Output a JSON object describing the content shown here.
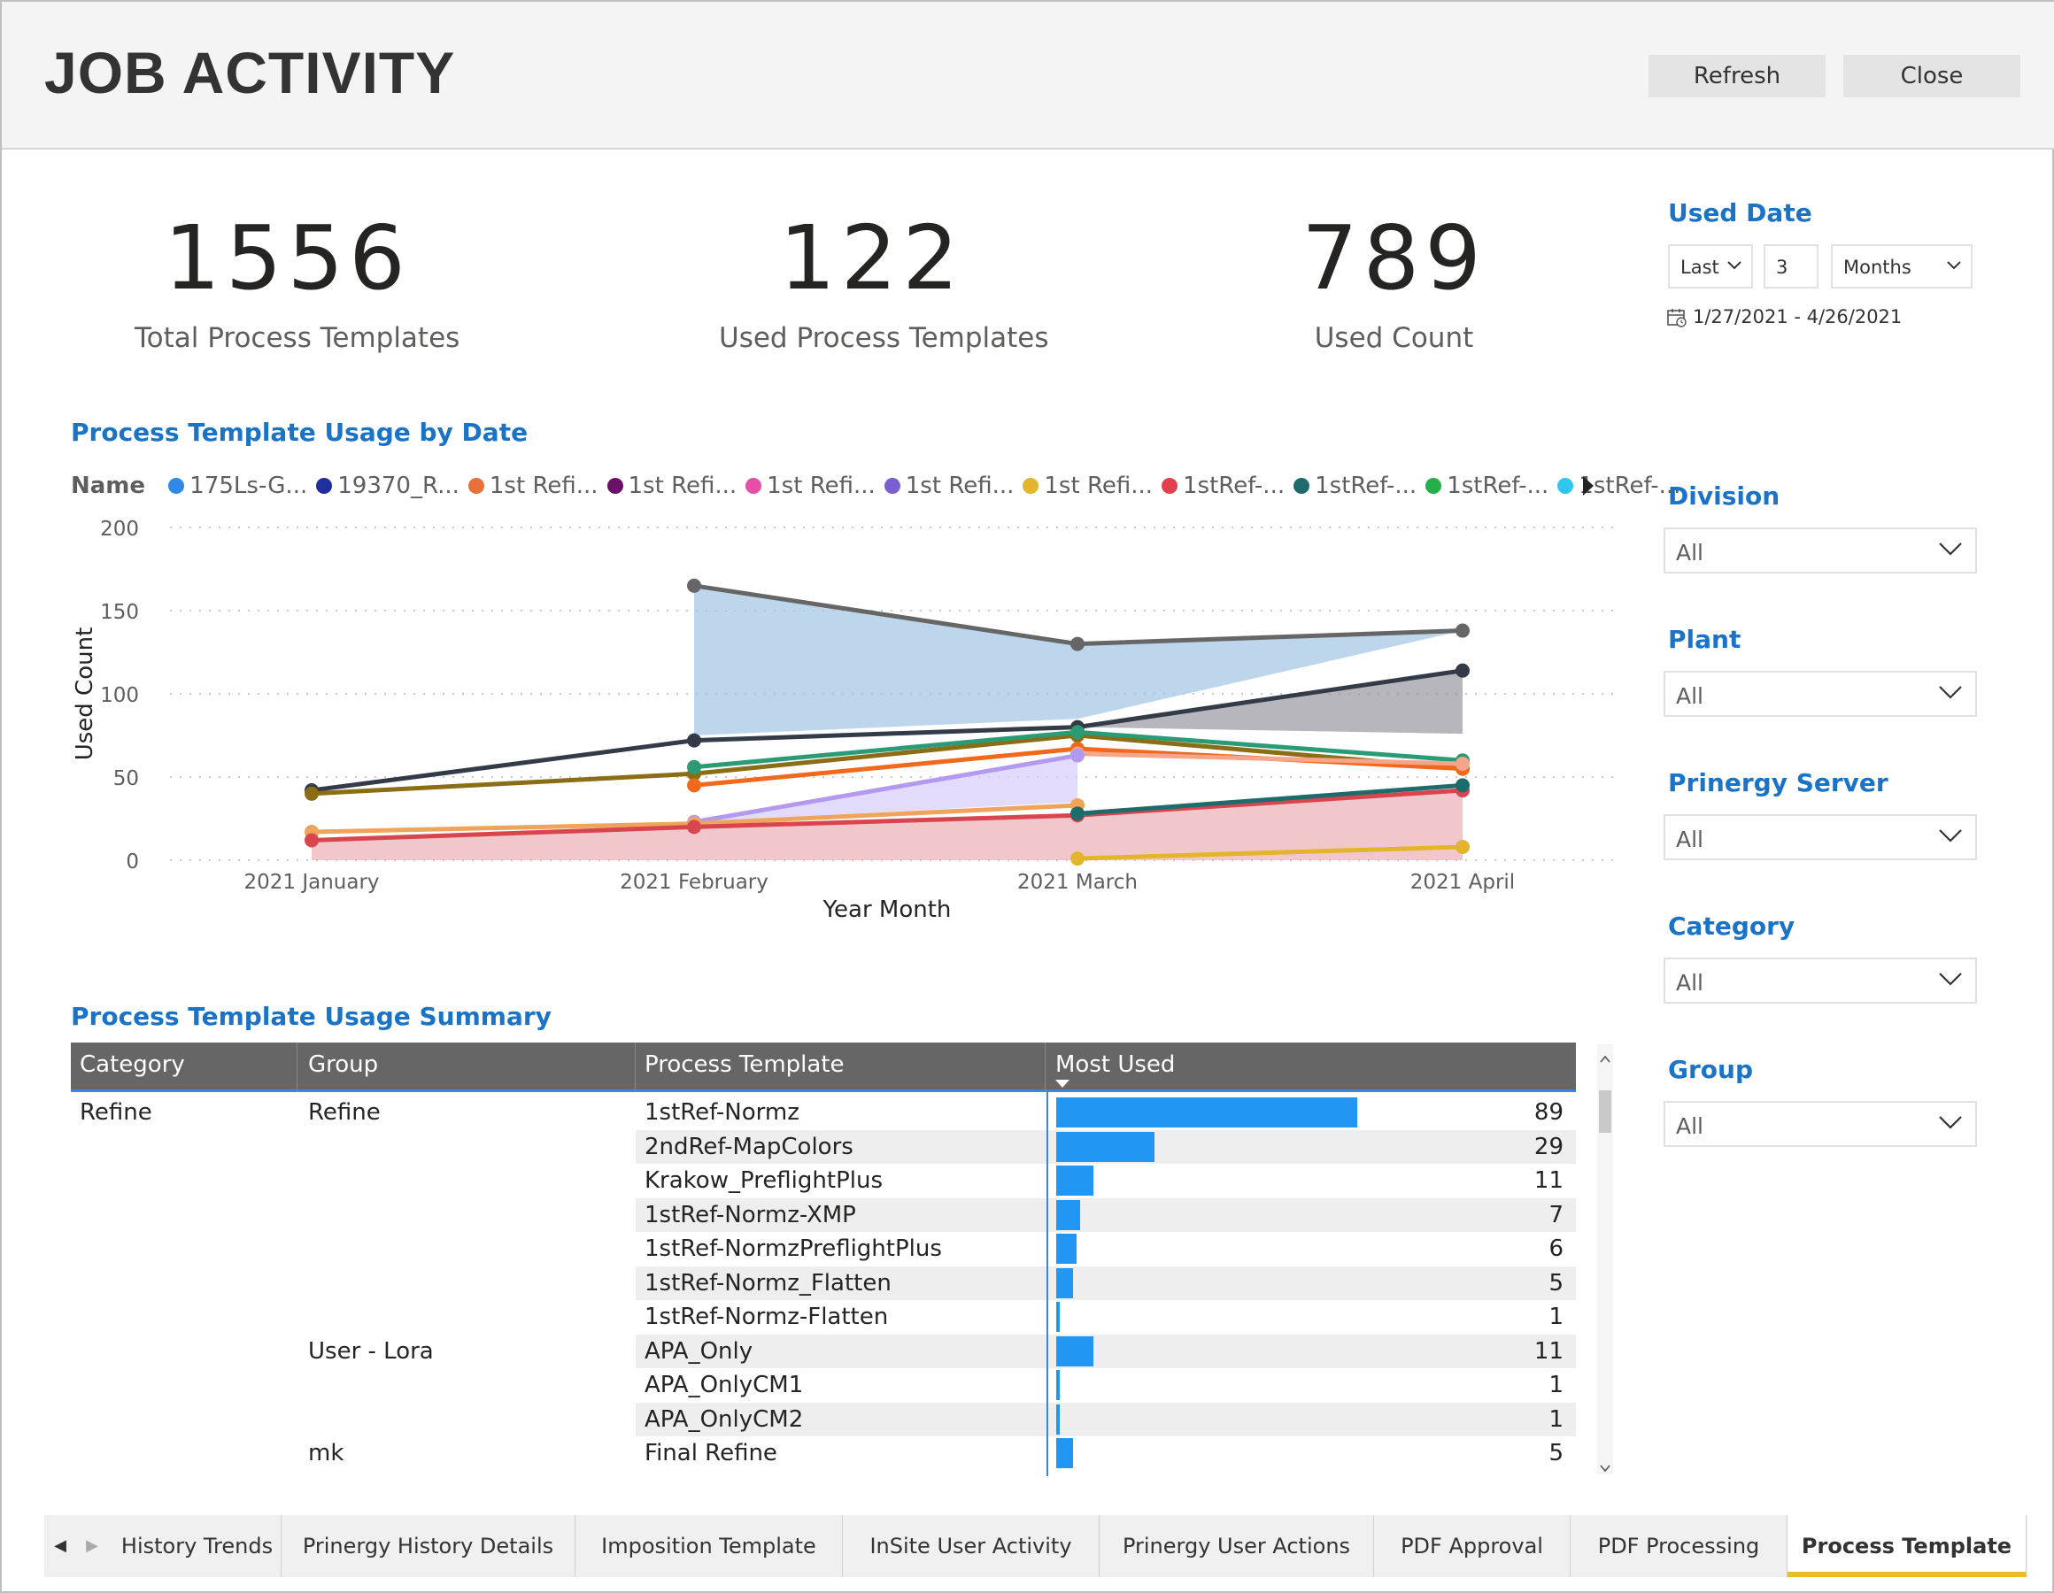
{
  "header": {
    "title": "JOB ACTIVITY",
    "refresh_label": "Refresh",
    "close_label": "Close"
  },
  "kpis": [
    {
      "value": "1556",
      "label": "Total Process Templates"
    },
    {
      "value": "122",
      "label": "Used Process Templates"
    },
    {
      "value": "789",
      "label": "Used Count"
    }
  ],
  "filters": {
    "used_date": {
      "title": "Used Date",
      "relative": "Last",
      "amount": "3",
      "unit": "Months",
      "range": "1/27/2021 - 4/26/2021"
    },
    "slicers": [
      {
        "title": "Division",
        "value": "All"
      },
      {
        "title": "Plant",
        "value": "All"
      },
      {
        "title": "Prinergy Server",
        "value": "All"
      },
      {
        "title": "Category",
        "value": "All"
      },
      {
        "title": "Group",
        "value": "All"
      }
    ]
  },
  "chart_title": "Process Template Usage by Date",
  "legend": {
    "label": "Name",
    "items": [
      {
        "name": "175Ls-G...",
        "color": "#2e8ae6"
      },
      {
        "name": "19370_R...",
        "color": "#1f2f9e"
      },
      {
        "name": "1st Refi...",
        "color": "#e8703a"
      },
      {
        "name": "1st Refi...",
        "color": "#6b0f6b"
      },
      {
        "name": "1st Refi...",
        "color": "#e44fa8"
      },
      {
        "name": "1st Refi...",
        "color": "#7b5fd1"
      },
      {
        "name": "1st Refi...",
        "color": "#e3b52a"
      },
      {
        "name": "1stRef-...",
        "color": "#e3404d"
      },
      {
        "name": "1stRef-...",
        "color": "#1d6b6b"
      },
      {
        "name": "1stRef-...",
        "color": "#23b04a"
      },
      {
        "name": "1stRef-...",
        "color": "#31c6ef"
      }
    ]
  },
  "chart_data": {
    "type": "area",
    "categories": [
      "2021 January",
      "2021 February",
      "2021 March",
      "2021 April"
    ],
    "xlabel": "Year Month",
    "ylabel": "Used Count",
    "ylim": [
      0,
      200
    ],
    "yticks": [
      0,
      50,
      100,
      150,
      200
    ],
    "grid": true,
    "legend_position": "top-left",
    "series": [
      {
        "color": "#a8c8e6",
        "line": "#666666",
        "values": [
          null,
          165,
          130,
          138
        ],
        "base": [
          null,
          75,
          85,
          138
        ],
        "fill": true
      },
      {
        "color": "#9e9ea6",
        "line": "#333a48",
        "values": [
          42,
          72,
          80,
          114
        ],
        "base": [
          null,
          null,
          80,
          76
        ],
        "fill": true
      },
      {
        "color": "#8a6d14",
        "line": "#8a6d14",
        "values": [
          40,
          52,
          75,
          55
        ]
      },
      {
        "color": "#2a9b74",
        "line": "#2a9b74",
        "values": [
          null,
          56,
          77,
          60
        ]
      },
      {
        "color": "#f2691e",
        "line": "#f2691e",
        "values": [
          null,
          45,
          67,
          55
        ]
      },
      {
        "color": "#f4a58a",
        "line": "#f4a58a",
        "values": [
          null,
          null,
          64,
          58
        ]
      },
      {
        "color": "#d9cffa",
        "line": "#b39af0",
        "values": [
          null,
          23,
          63,
          null
        ],
        "base": [
          null,
          23,
          35,
          null
        ],
        "fill": true
      },
      {
        "color": "#f0a35a",
        "line": "#f0a35a",
        "values": [
          17,
          22,
          33,
          null
        ]
      },
      {
        "color": "#eeb4ba",
        "line": "#d9454f",
        "values": [
          12,
          20,
          27,
          42
        ],
        "base": [
          0,
          0,
          0,
          0
        ],
        "fill": true
      },
      {
        "color": "#1d6b6b",
        "line": "#1d6b6b",
        "values": [
          null,
          null,
          28,
          45
        ]
      },
      {
        "color": "#e3b52a",
        "line": "#e3b52a",
        "values": [
          null,
          null,
          1,
          8
        ]
      }
    ]
  },
  "summary_title": "Process Template Usage Summary",
  "table": {
    "columns": [
      "Category",
      "Group",
      "Process Template",
      "Most Used"
    ],
    "max": 89,
    "rows": [
      {
        "category": "Refine",
        "group": "Refine",
        "template": "1stRef-Normz",
        "value": 89
      },
      {
        "category": "",
        "group": "",
        "template": "2ndRef-MapColors",
        "value": 29
      },
      {
        "category": "",
        "group": "",
        "template": "Krakow_PreflightPlus",
        "value": 11
      },
      {
        "category": "",
        "group": "",
        "template": "1stRef-Normz-XMP",
        "value": 7
      },
      {
        "category": "",
        "group": "",
        "template": "1stRef-NormzPreflightPlus",
        "value": 6
      },
      {
        "category": "",
        "group": "",
        "template": "1stRef-Normz_Flatten",
        "value": 5
      },
      {
        "category": "",
        "group": "",
        "template": "1stRef-Normz-Flatten",
        "value": 1
      },
      {
        "category": "",
        "group": "User - Lora",
        "template": "APA_Only",
        "value": 11
      },
      {
        "category": "",
        "group": "",
        "template": "APA_OnlyCM1",
        "value": 1
      },
      {
        "category": "",
        "group": "",
        "template": "APA_OnlyCM2",
        "value": 1
      },
      {
        "category": "",
        "group": "mk",
        "template": "Final Refine",
        "value": 5
      }
    ]
  },
  "tabs": [
    {
      "label": "History Trends",
      "active": false
    },
    {
      "label": "Prinergy History Details",
      "active": false
    },
    {
      "label": "Imposition Template",
      "active": false
    },
    {
      "label": "InSite User Activity",
      "active": false
    },
    {
      "label": "Prinergy User Actions",
      "active": false
    },
    {
      "label": "PDF Approval",
      "active": false
    },
    {
      "label": "PDF Processing",
      "active": false
    },
    {
      "label": "Process Template",
      "active": true
    }
  ]
}
